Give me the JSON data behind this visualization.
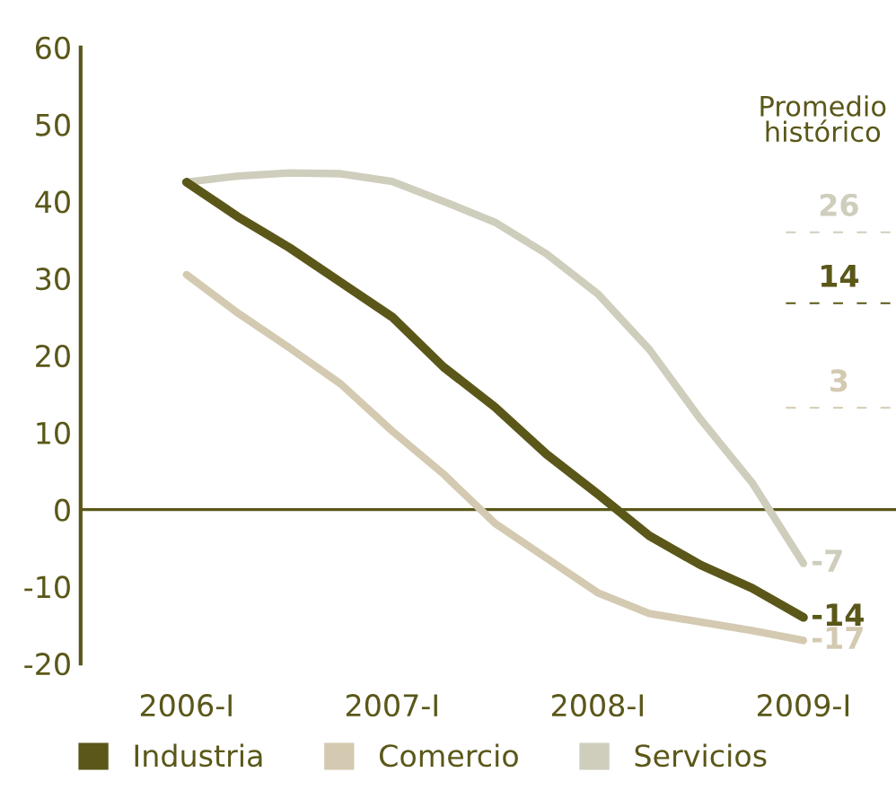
{
  "chart_data": {
    "type": "line",
    "categories": [
      "2006-I",
      null,
      null,
      null,
      "2007-I",
      null,
      null,
      null,
      "2008-I",
      null,
      null,
      null,
      "2009-I"
    ],
    "series": [
      {
        "name": "Industria",
        "color": "#5a5719",
        "values": [
          42.5,
          38,
          34,
          29.5,
          25,
          18.5,
          13.3,
          7.2,
          2,
          -3.4,
          -7.2,
          -10.2,
          -14
        ],
        "value_labels": [
          null,
          null,
          null,
          null,
          null,
          null,
          null,
          null,
          null,
          null,
          null,
          null,
          "-14"
        ]
      },
      {
        "name": "Comercio",
        "color": "#d4cab1",
        "values": [
          30.5,
          25.5,
          21,
          16.3,
          10.2,
          4.6,
          -1.8,
          -6.3,
          -10.8,
          -13.5,
          -14.6,
          -15.7,
          -17
        ],
        "value_labels": [
          null,
          null,
          null,
          null,
          null,
          null,
          null,
          null,
          null,
          null,
          null,
          null,
          "-17"
        ]
      },
      {
        "name": "Servicios",
        "color": "#cfcdbc",
        "values": [
          42.5,
          43.3,
          43.7,
          43.6,
          42.6,
          40,
          37.3,
          33.2,
          28,
          20.8,
          11.7,
          3.5,
          -7
        ],
        "value_labels": [
          null,
          null,
          null,
          null,
          null,
          null,
          null,
          null,
          null,
          null,
          null,
          null,
          "-7"
        ]
      }
    ],
    "annotations": [
      "Promedio\nhistórico",
      "26",
      "14",
      "3"
    ],
    "ylim": [
      -20,
      60
    ],
    "yticks": [
      -20,
      -10,
      0,
      10,
      20,
      30,
      40,
      50,
      60
    ],
    "grid": false,
    "legend": "bottom",
    "marker": "none",
    "line_style": "solid"
  }
}
